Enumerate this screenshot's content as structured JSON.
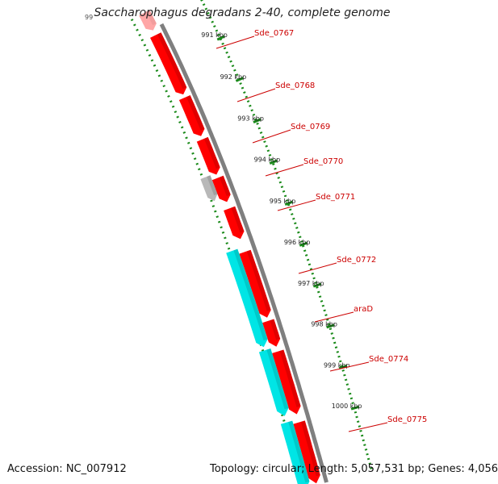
{
  "title": "Saccharophagus degradans 2-40, complete genome",
  "accession": "Accession: NC_007912",
  "summary": "Topology: circular; Length: 5,057,531 bp; Genes: 4,056",
  "colors": {
    "forward_cds": "#ff0000",
    "reverse_cds": "#00e5e5",
    "other_feature": "#b8b8b8",
    "backbone": "#7f7f7f",
    "scale_dots": "#1a8a1a",
    "label": "#cc0000"
  },
  "scale_ticks": [
    {
      "label": "991 kbp"
    },
    {
      "label": "992 kbp"
    },
    {
      "label": "993 kbp"
    },
    {
      "label": "994 kbp"
    },
    {
      "label": "995 kbp"
    },
    {
      "label": "996 kbp"
    },
    {
      "label": "997 kbp"
    },
    {
      "label": "998 kbp"
    },
    {
      "label": "999 kbp"
    },
    {
      "label": "1000 kbp"
    }
  ],
  "gene_labels": [
    {
      "name": "Sde_0767"
    },
    {
      "name": "Sde_0768"
    },
    {
      "name": "Sde_0769"
    },
    {
      "name": "Sde_0770"
    },
    {
      "name": "Sde_0771"
    },
    {
      "name": "Sde_0772"
    },
    {
      "name": "araD"
    },
    {
      "name": "Sde_0774"
    },
    {
      "name": "Sde_0775"
    }
  ]
}
